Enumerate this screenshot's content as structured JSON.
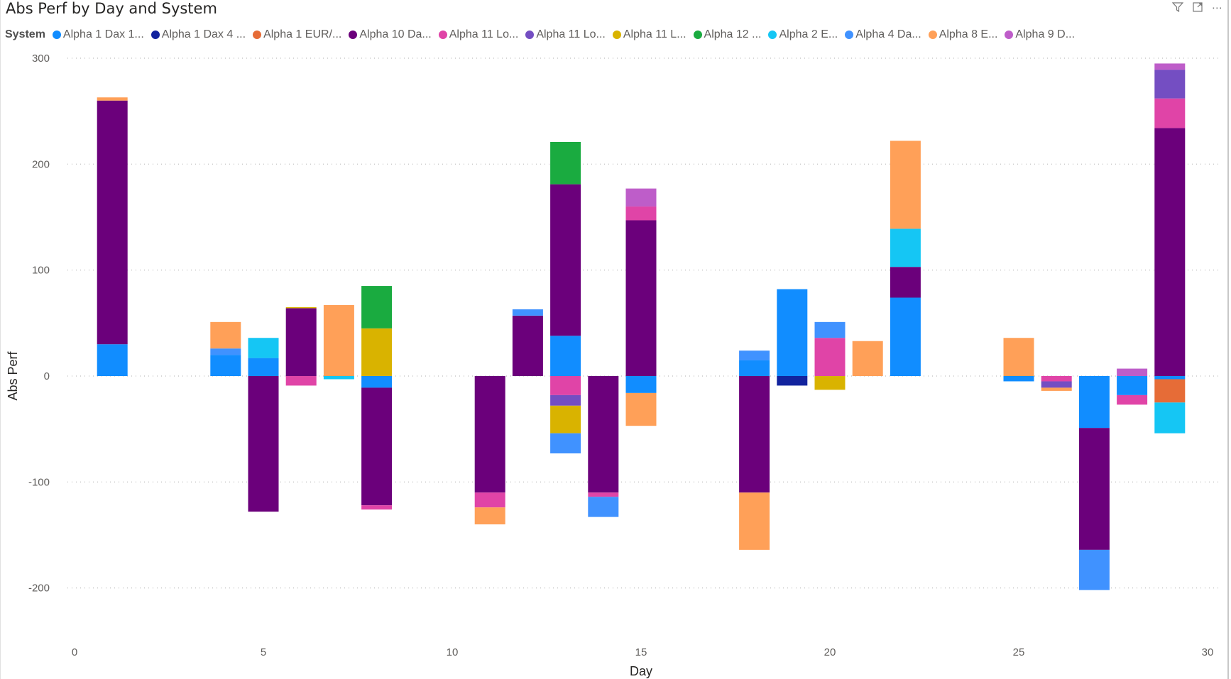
{
  "chart_data": {
    "type": "bar",
    "stacked": true,
    "title": "Abs Perf by Day and System",
    "xlabel": "Day",
    "ylabel": "Abs Perf",
    "xlim": [
      0,
      30
    ],
    "ylim": [
      -200,
      300
    ],
    "xticks": [
      "0",
      "5",
      "10",
      "15",
      "20",
      "25",
      "30"
    ],
    "yticks": [
      "300",
      "200",
      "100",
      "0",
      "-100",
      "-200"
    ],
    "grid": true,
    "legend_title": "System",
    "legend_position": "top-left",
    "x": [
      1,
      4,
      5,
      6,
      7,
      8,
      11,
      12,
      13,
      14,
      15,
      18,
      19,
      20,
      21,
      22,
      25,
      26,
      27,
      28,
      29
    ],
    "series": [
      {
        "name": "Alpha 1 Dax 1...",
        "color": "#118DFF",
        "values": [
          30,
          20,
          17,
          0,
          0,
          -11,
          0,
          0,
          38,
          0,
          -16,
          15,
          82,
          0,
          0,
          74,
          -5,
          0,
          -49,
          -18,
          -3
        ]
      },
      {
        "name": "Alpha 1 Dax 4 ...",
        "color": "#12239E",
        "values": [
          0,
          0,
          0,
          0,
          0,
          0,
          0,
          0,
          0,
          0,
          0,
          0,
          -9,
          0,
          0,
          0,
          0,
          0,
          0,
          0,
          0
        ]
      },
      {
        "name": "Alpha 1 EUR/...",
        "color": "#E66C37",
        "values": [
          0,
          0,
          0,
          0,
          0,
          0,
          0,
          0,
          0,
          0,
          0,
          0,
          0,
          0,
          0,
          0,
          0,
          0,
          0,
          0,
          -22
        ]
      },
      {
        "name": "Alpha 10 Da...",
        "color": "#6B007B",
        "values": [
          230,
          0,
          -128,
          64,
          0,
          -111,
          -110,
          57,
          143,
          -110,
          147,
          -110,
          0,
          0,
          0,
          29,
          0,
          0,
          -115,
          0,
          234
        ]
      },
      {
        "name": "Alpha 11 Lo...",
        "color": "#E044A7",
        "values": [
          0,
          0,
          0,
          -9,
          0,
          -4,
          -14,
          0,
          -18,
          -4,
          13,
          0,
          0,
          36,
          0,
          0,
          0,
          -5,
          0,
          -9,
          28
        ]
      },
      {
        "name": "Alpha 11 Lo...",
        "color": "#744EC2",
        "values": [
          0,
          0,
          0,
          0,
          0,
          0,
          0,
          0,
          -10,
          0,
          0,
          0,
          0,
          0,
          0,
          0,
          0,
          -6,
          0,
          0,
          27
        ]
      },
      {
        "name": "Alpha 11 L...",
        "color": "#D9B300",
        "values": [
          0,
          0,
          0,
          1,
          0,
          45,
          0,
          0,
          -26,
          0,
          0,
          0,
          0,
          -13,
          0,
          0,
          0,
          0,
          0,
          0,
          0
        ]
      },
      {
        "name": "Alpha 12 ...",
        "color": "#1AAB40",
        "values": [
          0,
          0,
          0,
          0,
          0,
          40,
          0,
          0,
          40,
          0,
          0,
          0,
          0,
          0,
          0,
          0,
          0,
          0,
          0,
          0,
          0
        ]
      },
      {
        "name": "Alpha 2 E...",
        "color": "#15C6F4",
        "values": [
          0,
          0,
          19,
          0,
          -3,
          0,
          0,
          0,
          0,
          0,
          0,
          0,
          0,
          0,
          0,
          36,
          0,
          0,
          0,
          0,
          -29
        ]
      },
      {
        "name": "Alpha 4 Da...",
        "color": "#4092FF",
        "values": [
          0,
          6,
          0,
          0,
          0,
          0,
          0,
          6,
          -19,
          -19,
          0,
          9,
          0,
          15,
          0,
          0,
          0,
          0,
          -38,
          0,
          0
        ]
      },
      {
        "name": "Alpha 8 E...",
        "color": "#FFA058",
        "values": [
          3,
          25,
          0,
          0,
          67,
          0,
          -16,
          0,
          0,
          0,
          -31,
          -54,
          0,
          0,
          33,
          83,
          36,
          -3,
          0,
          0,
          0
        ]
      },
      {
        "name": "Alpha 9 D...",
        "color": "#BE5DC9",
        "values": [
          0,
          0,
          0,
          0,
          0,
          0,
          0,
          0,
          0,
          0,
          17,
          0,
          0,
          0,
          0,
          0,
          0,
          0,
          0,
          7,
          6
        ]
      }
    ]
  },
  "header_icons": [
    "filter-icon",
    "focus-mode-icon",
    "more-options-icon"
  ]
}
